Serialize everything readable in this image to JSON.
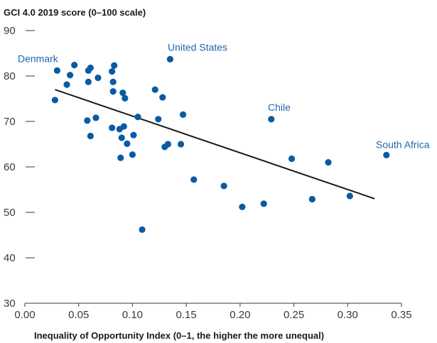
{
  "colors": {
    "point": "#0a5aa4",
    "label": "#1f66b0",
    "trend": "#1a1a1a",
    "axis": "#3a3a3a"
  },
  "chart_data": {
    "type": "scatter",
    "ylabel": "GCI 4.0 2019 score (0–100 scale)",
    "xlabel": "Inequality of Opportunity Index (0–1, the higher the more unequal)",
    "xlim": [
      0,
      0.35
    ],
    "ylim": [
      30,
      90
    ],
    "x_ticks": [
      0.0,
      0.05,
      0.1,
      0.15,
      0.2,
      0.25,
      0.3,
      0.35
    ],
    "x_tick_labels": [
      "0.00",
      "0.05",
      "0.10",
      "0.15",
      "0.20",
      "0.25",
      "0.30",
      "0.35"
    ],
    "y_ticks": [
      30,
      40,
      50,
      60,
      70,
      80,
      90
    ],
    "y_tick_labels": [
      "30",
      "40",
      "50",
      "60",
      "70",
      "80",
      "90"
    ],
    "grid": false,
    "trendline": {
      "x": [
        0.028,
        0.325
      ],
      "y": [
        77.0,
        53.0
      ]
    },
    "points": [
      {
        "x": 0.028,
        "y": 74.7
      },
      {
        "x": 0.03,
        "y": 81.2,
        "label": "Denmark"
      },
      {
        "x": 0.039,
        "y": 78.1
      },
      {
        "x": 0.042,
        "y": 80.2
      },
      {
        "x": 0.046,
        "y": 82.4
      },
      {
        "x": 0.058,
        "y": 70.2
      },
      {
        "x": 0.059,
        "y": 81.2
      },
      {
        "x": 0.059,
        "y": 78.7
      },
      {
        "x": 0.061,
        "y": 81.8
      },
      {
        "x": 0.061,
        "y": 66.8
      },
      {
        "x": 0.066,
        "y": 70.8
      },
      {
        "x": 0.068,
        "y": 79.6
      },
      {
        "x": 0.081,
        "y": 81.0
      },
      {
        "x": 0.081,
        "y": 68.6
      },
      {
        "x": 0.082,
        "y": 78.7
      },
      {
        "x": 0.082,
        "y": 76.6
      },
      {
        "x": 0.083,
        "y": 82.3
      },
      {
        "x": 0.088,
        "y": 68.3
      },
      {
        "x": 0.089,
        "y": 62.0
      },
      {
        "x": 0.09,
        "y": 66.4
      },
      {
        "x": 0.091,
        "y": 76.3
      },
      {
        "x": 0.092,
        "y": 68.9
      },
      {
        "x": 0.093,
        "y": 75.1
      },
      {
        "x": 0.095,
        "y": 65.1
      },
      {
        "x": 0.1,
        "y": 62.7
      },
      {
        "x": 0.101,
        "y": 67.0
      },
      {
        "x": 0.105,
        "y": 71.0
      },
      {
        "x": 0.109,
        "y": 46.2
      },
      {
        "x": 0.121,
        "y": 77.0
      },
      {
        "x": 0.124,
        "y": 70.5
      },
      {
        "x": 0.128,
        "y": 75.3
      },
      {
        "x": 0.13,
        "y": 64.4
      },
      {
        "x": 0.133,
        "y": 65.0
      },
      {
        "x": 0.135,
        "y": 83.7,
        "label": "United States"
      },
      {
        "x": 0.145,
        "y": 65.0
      },
      {
        "x": 0.147,
        "y": 71.5
      },
      {
        "x": 0.157,
        "y": 57.2
      },
      {
        "x": 0.185,
        "y": 55.8
      },
      {
        "x": 0.202,
        "y": 51.2
      },
      {
        "x": 0.222,
        "y": 51.9
      },
      {
        "x": 0.229,
        "y": 70.5,
        "label": "Chile"
      },
      {
        "x": 0.248,
        "y": 61.8
      },
      {
        "x": 0.267,
        "y": 52.9
      },
      {
        "x": 0.282,
        "y": 61.0
      },
      {
        "x": 0.302,
        "y": 53.6
      },
      {
        "x": 0.336,
        "y": 62.6,
        "label": "South Africa"
      }
    ]
  }
}
